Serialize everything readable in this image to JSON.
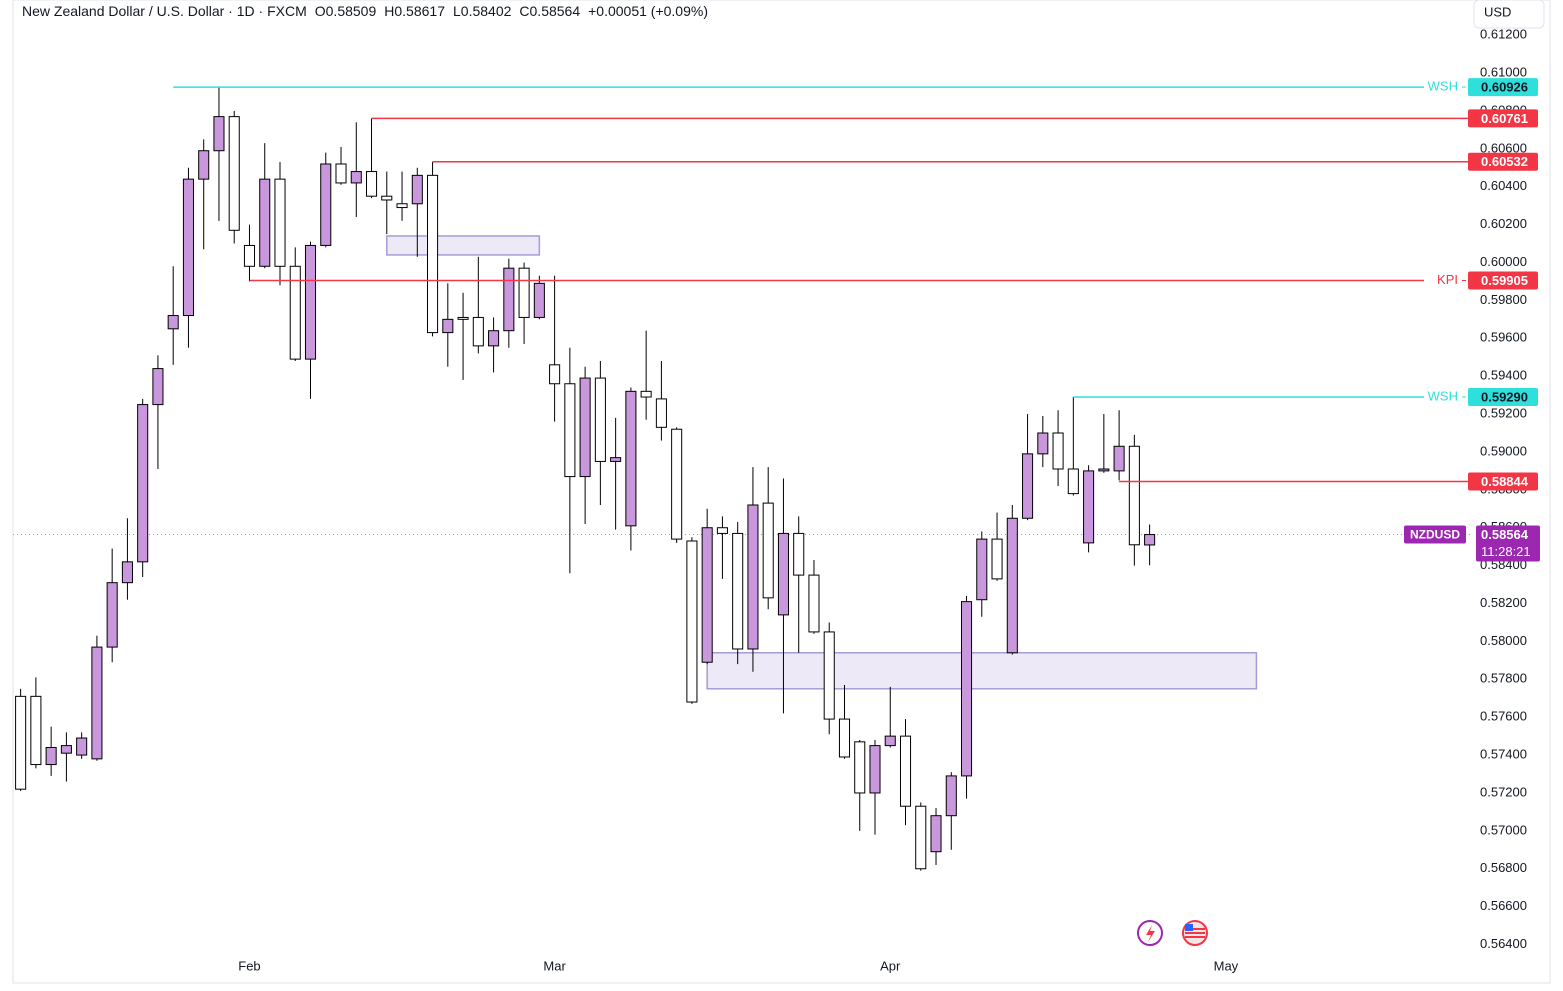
{
  "chart_data": {
    "type": "candlestick",
    "title": "New Zealand Dollar / U.S. Dollar · 1D · FXCM",
    "header": {
      "open_label": "O",
      "high_label": "H",
      "low_label": "L",
      "close_label": "C",
      "change": "+0.00051 (+0.09%)"
    },
    "currency": "USD",
    "symbol": "NZDUSD",
    "countdown": "11:28:21",
    "up_color": "#c997db",
    "down_color": "#ffffff",
    "grid": false,
    "xlim": [
      -0.5,
      95
    ],
    "xticks": [
      {
        "value": 15,
        "label": "Feb"
      },
      {
        "value": 35,
        "label": "Mar"
      },
      {
        "value": 57,
        "label": "Apr"
      },
      {
        "value": 79,
        "label": "May"
      }
    ],
    "ylim": [
      0.5635,
      0.6128
    ],
    "yticks": [
      {
        "value": 0.564,
        "label": "0.56400"
      },
      {
        "value": 0.566,
        "label": "0.56600"
      },
      {
        "value": 0.568,
        "label": "0.56800"
      },
      {
        "value": 0.57,
        "label": "0.57000"
      },
      {
        "value": 0.572,
        "label": "0.57200"
      },
      {
        "value": 0.574,
        "label": "0.57400"
      },
      {
        "value": 0.576,
        "label": "0.57600"
      },
      {
        "value": 0.578,
        "label": "0.57800"
      },
      {
        "value": 0.58,
        "label": "0.58000"
      },
      {
        "value": 0.582,
        "label": "0.58200"
      },
      {
        "value": 0.584,
        "label": "0.58400"
      },
      {
        "value": 0.586,
        "label": "0.58600"
      },
      {
        "value": 0.588,
        "label": "0.58800"
      },
      {
        "value": 0.59,
        "label": "0.59000"
      },
      {
        "value": 0.592,
        "label": "0.59200"
      },
      {
        "value": 0.594,
        "label": "0.59400"
      },
      {
        "value": 0.596,
        "label": "0.59600"
      },
      {
        "value": 0.598,
        "label": "0.59800"
      },
      {
        "value": 0.6,
        "label": "0.60000"
      },
      {
        "value": 0.602,
        "label": "0.60200"
      },
      {
        "value": 0.604,
        "label": "0.60400"
      },
      {
        "value": 0.606,
        "label": "0.60600"
      },
      {
        "value": 0.608,
        "label": "0.60800"
      },
      {
        "value": 0.61,
        "label": "0.61000"
      },
      {
        "value": 0.612,
        "label": "0.61200"
      }
    ],
    "open": [
      0.5771,
      0.5771,
      0.5735,
      0.5741,
      0.574,
      0.5738,
      0.5797,
      0.5831,
      0.5842,
      0.5925,
      0.5965,
      0.5972,
      0.6044,
      0.6059,
      0.6077,
      0.6009,
      0.5998,
      0.6044,
      0.5998,
      0.5949,
      0.6009,
      0.6052,
      0.6042,
      0.6048,
      0.6035,
      0.6031,
      0.6031,
      0.6046,
      0.5963,
      0.5971,
      0.5971,
      0.5956,
      0.5964,
      0.5997,
      0.5971,
      0.5946,
      0.5936,
      0.5887,
      0.5939,
      0.5895,
      0.5861,
      0.5932,
      0.5928,
      0.5912,
      0.5853,
      0.5789,
      0.586,
      0.5857,
      0.5796,
      0.5873,
      0.5814,
      0.5857,
      0.5835,
      0.5805,
      0.5759,
      0.5747,
      0.572,
      0.5745,
      0.575,
      0.5713,
      0.5689,
      0.5708,
      0.5729,
      0.5822,
      0.5854,
      0.5794,
      0.5865,
      0.5899,
      0.591,
      0.5891,
      0.5852,
      0.589,
      0.589,
      0.5903,
      0.58509
    ],
    "high": [
      0.5775,
      0.5781,
      0.5755,
      0.5752,
      0.5752,
      0.5803,
      0.5849,
      0.5865,
      0.5928,
      0.5951,
      0.5998,
      0.605,
      0.6065,
      0.60926,
      0.608,
      0.602,
      0.6063,
      0.6053,
      0.6008,
      0.6011,
      0.6058,
      0.6061,
      0.6074,
      0.60761,
      0.6048,
      0.6048,
      0.605,
      0.60532,
      0.5989,
      0.5984,
      0.6003,
      0.5971,
      0.6002,
      0.6,
      0.5993,
      0.5993,
      0.5955,
      0.5945,
      0.5948,
      0.5918,
      0.5934,
      0.5964,
      0.5948,
      0.5913,
      0.5855,
      0.587,
      0.5866,
      0.5863,
      0.5892,
      0.5892,
      0.5886,
      0.5866,
      0.5843,
      0.581,
      0.5777,
      0.5748,
      0.5748,
      0.5776,
      0.5759,
      0.5715,
      0.5712,
      0.5731,
      0.5824,
      0.5858,
      0.5868,
      0.5872,
      0.592,
      0.5919,
      0.5922,
      0.5929,
      0.5893,
      0.592,
      0.5922,
      0.5909,
      0.58617
    ],
    "low": [
      0.5721,
      0.5733,
      0.5729,
      0.5726,
      0.5738,
      0.5737,
      0.5789,
      0.5822,
      0.5834,
      0.5891,
      0.5946,
      0.5955,
      0.6007,
      0.6022,
      0.601,
      0.599,
      0.5997,
      0.5988,
      0.5948,
      0.5928,
      0.6008,
      0.6041,
      0.6024,
      0.6034,
      0.6015,
      0.6022,
      0.6003,
      0.5961,
      0.5945,
      0.5938,
      0.5952,
      0.5942,
      0.5955,
      0.5957,
      0.597,
      0.5916,
      0.5836,
      0.5862,
      0.5872,
      0.5859,
      0.5848,
      0.5917,
      0.5906,
      0.5852,
      0.5767,
      0.5788,
      0.5833,
      0.5788,
      0.5784,
      0.5817,
      0.5762,
      0.5794,
      0.5804,
      0.5751,
      0.5738,
      0.57,
      0.5698,
      0.5744,
      0.5703,
      0.5679,
      0.5682,
      0.569,
      0.5717,
      0.5813,
      0.5832,
      0.5793,
      0.5864,
      0.5892,
      0.5882,
      0.5877,
      0.5847,
      0.5889,
      0.5885,
      0.584,
      0.58402
    ],
    "close": [
      0.5722,
      0.5735,
      0.5744,
      0.5745,
      0.5749,
      0.5797,
      0.5831,
      0.5842,
      0.5925,
      0.5944,
      0.5972,
      0.6044,
      0.6059,
      0.6077,
      0.6017,
      0.5998,
      0.6044,
      0.5998,
      0.5949,
      0.6009,
      0.6052,
      0.6042,
      0.6048,
      0.6035,
      0.6033,
      0.6029,
      0.6046,
      0.5963,
      0.597,
      0.597,
      0.5956,
      0.5964,
      0.5997,
      0.5971,
      0.5989,
      0.5936,
      0.5887,
      0.5939,
      0.5895,
      0.5897,
      0.5932,
      0.5929,
      0.5913,
      0.5854,
      0.5768,
      0.586,
      0.5857,
      0.5796,
      0.5872,
      0.5823,
      0.5857,
      0.5835,
      0.5805,
      0.5759,
      0.5739,
      0.572,
      0.5745,
      0.575,
      0.5713,
      0.568,
      0.5708,
      0.5729,
      0.5821,
      0.5854,
      0.5833,
      0.5865,
      0.5899,
      0.591,
      0.5891,
      0.5878,
      0.589,
      0.5891,
      0.5903,
      0.5851,
      0.58564
    ],
    "levels": [
      {
        "label": "WSH",
        "value": 0.60926,
        "start": 10,
        "color": "#2ee0dc"
      },
      {
        "value": 0.60761,
        "start": 23,
        "color": "#f23645"
      },
      {
        "value": 0.60532,
        "start": 27,
        "color": "#f23645"
      },
      {
        "label": "KPI",
        "value": 0.59905,
        "start": 15,
        "color": "#f23645"
      },
      {
        "label": "WSH",
        "value": 0.5929,
        "value_label": "0.59290",
        "start": 69,
        "color": "#2ee0dc"
      },
      {
        "value": 0.58844,
        "start": 72,
        "color": "#f23645"
      }
    ],
    "zones": [
      {
        "top": 0.6014,
        "bottom": 0.6004,
        "start": 24,
        "end": 34
      },
      {
        "top": 0.5794,
        "bottom": 0.5775,
        "start": 45,
        "end": 81
      }
    ],
    "price_color": "#9c27b0"
  }
}
